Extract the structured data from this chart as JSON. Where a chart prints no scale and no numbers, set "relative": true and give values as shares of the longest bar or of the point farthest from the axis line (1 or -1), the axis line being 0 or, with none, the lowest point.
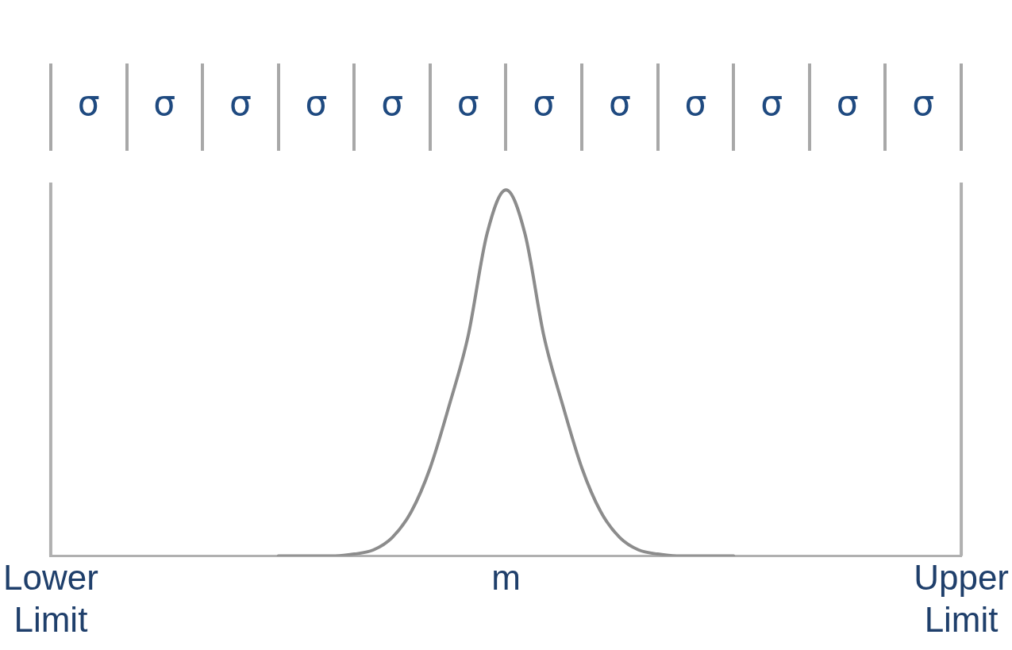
{
  "chart_data": {
    "type": "line",
    "relative": true,
    "categories": [
      "Lower Limit",
      null,
      null,
      null,
      null,
      null,
      null,
      null,
      null,
      null,
      null,
      null,
      null,
      null,
      null,
      null,
      null,
      null,
      null,
      null,
      null,
      null,
      null,
      null,
      "m",
      null,
      null,
      null,
      null,
      null,
      null,
      null,
      null,
      null,
      null,
      null,
      null,
      null,
      null,
      null,
      null,
      null,
      null,
      null,
      null,
      null,
      null,
      null,
      "Upper Limit"
    ],
    "series": [
      {
        "color": "#8c8c8c",
        "values": [
          null,
          null,
          null,
          null,
          null,
          null,
          null,
          null,
          null,
          null,
          null,
          null,
          0,
          0,
          0,
          0,
          0.005,
          0.016,
          0.05,
          0.12,
          0.24,
          0.41,
          0.6,
          0.88,
          1,
          0.88,
          0.6,
          0.41,
          0.24,
          0.12,
          0.05,
          0.016,
          0.005,
          0,
          0,
          0,
          0,
          null,
          null,
          null,
          null,
          null,
          null,
          null,
          null,
          null,
          null,
          null,
          null
        ]
      }
    ],
    "ref_lines": [
      {
        "axis": "x",
        "value": "Lower Limit",
        "color": "#b0b0b0"
      },
      {
        "axis": "x",
        "value": "Upper Limit",
        "color": "#b0b0b0"
      }
    ],
    "annotations": [
      "σ",
      "σ",
      "σ",
      "σ",
      "σ",
      "σ",
      "σ",
      "σ",
      "σ",
      "σ",
      "σ",
      "σ"
    ],
    "marker": "none",
    "line_style": "solid",
    "legend": false
  }
}
